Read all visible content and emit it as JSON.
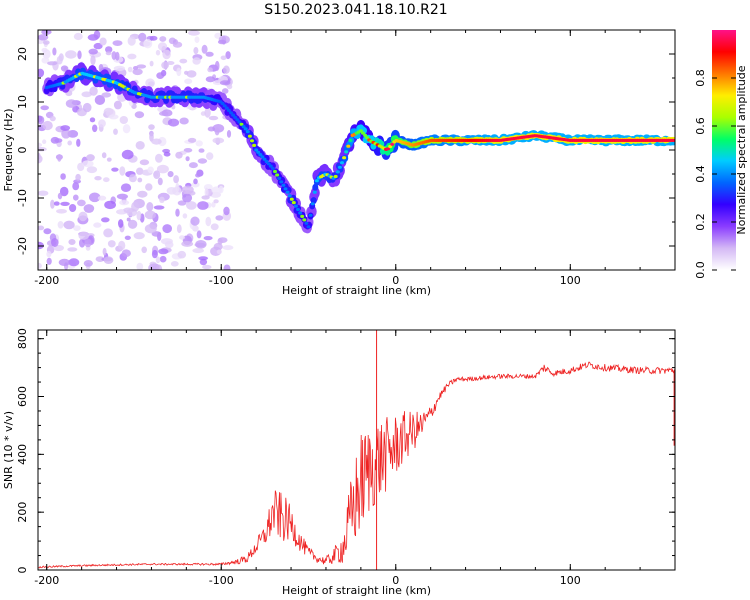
{
  "title": "S150.2023.041.18.10.R21",
  "chart_data": [
    {
      "type": "heatmap",
      "xlabel": "Height of straight line (km)",
      "ylabel": "Frequency (Hz)",
      "xlim": [
        -205,
        160
      ],
      "ylim": [
        -25,
        25
      ],
      "x_ticks": [
        -200,
        -100,
        0,
        100
      ],
      "y_ticks": [
        20,
        10,
        0,
        -10,
        -20
      ],
      "grid": false,
      "colorbar": {
        "label": "Normalized spectral amplitude",
        "range": [
          0,
          1
        ],
        "ticks": [
          "0.0",
          "0.2",
          "0.4",
          "0.6",
          "0.8"
        ],
        "colormap": [
          "#ffffff",
          "#d4b8f5",
          "#8a3cff",
          "#3300ff",
          "#0066ff",
          "#00ccff",
          "#00ff66",
          "#aaff00",
          "#ffee00",
          "#ff7700",
          "#ff0000",
          "#ff1188"
        ]
      },
      "ridge": {
        "x": [
          -200,
          -190,
          -180,
          -170,
          -160,
          -150,
          -140,
          -130,
          -120,
          -110,
          -100,
          -90,
          -85,
          -80,
          -70,
          -60,
          -50,
          -45,
          -40,
          -35,
          -30,
          -25,
          -20,
          -15,
          -10,
          -5,
          0,
          10,
          20,
          40,
          60,
          80,
          100,
          120,
          160
        ],
        "y": [
          13,
          14,
          16,
          15,
          14,
          12,
          11,
          11,
          11,
          11,
          10,
          6,
          4,
          0,
          -4,
          -10,
          -16,
          -6,
          -5,
          -6,
          -2,
          3,
          4,
          2,
          1,
          0,
          2,
          1,
          2,
          2,
          2,
          3,
          2,
          2,
          2
        ],
        "amp": [
          0.35,
          0.4,
          0.45,
          0.45,
          0.45,
          0.4,
          0.4,
          0.4,
          0.4,
          0.4,
          0.35,
          0.35,
          0.4,
          0.4,
          0.35,
          0.4,
          0.35,
          0.45,
          0.45,
          0.4,
          0.45,
          0.55,
          0.6,
          0.6,
          0.65,
          0.7,
          0.75,
          0.8,
          0.85,
          0.9,
          0.95,
          0.95,
          0.95,
          0.95,
          0.95
        ]
      }
    },
    {
      "type": "line",
      "xlabel": "Height of straight line (km)",
      "ylabel": "SNR (10 * v/v)",
      "xlim": [
        -205,
        160
      ],
      "ylim": [
        0,
        830
      ],
      "x_ticks": [
        -200,
        -100,
        0,
        100
      ],
      "y_ticks": [
        0,
        200,
        400,
        600,
        800
      ],
      "line_color": "#ee2222",
      "grid": false,
      "series": [
        {
          "x": [
            -205,
            -180,
            -160,
            -140,
            -120,
            -100,
            -95,
            -90,
            -85,
            -80,
            -75,
            -70,
            -65,
            -60,
            -55,
            -50,
            -45,
            -40,
            -35,
            -30,
            -25,
            -20,
            -15,
            -10,
            -5,
            0,
            5,
            10,
            15,
            20,
            25,
            30,
            35,
            40,
            60,
            80,
            85,
            90,
            100,
            110,
            120,
            140,
            160
          ],
          "y": [
            10,
            15,
            18,
            20,
            20,
            20,
            25,
            30,
            40,
            80,
            120,
            200,
            180,
            160,
            100,
            60,
            40,
            30,
            50,
            80,
            200,
            300,
            350,
            380,
            400,
            430,
            460,
            480,
            500,
            540,
            600,
            640,
            660,
            660,
            670,
            670,
            700,
            680,
            690,
            710,
            700,
            690,
            690
          ],
          "noise": [
            3,
            3,
            3,
            3,
            3,
            4,
            6,
            10,
            15,
            25,
            40,
            80,
            90,
            60,
            35,
            20,
            15,
            15,
            30,
            60,
            150,
            180,
            160,
            150,
            130,
            110,
            90,
            70,
            50,
            30,
            15,
            10,
            8,
            8,
            8,
            8,
            15,
            10,
            12,
            12,
            12,
            12,
            12
          ]
        }
      ]
    }
  ]
}
